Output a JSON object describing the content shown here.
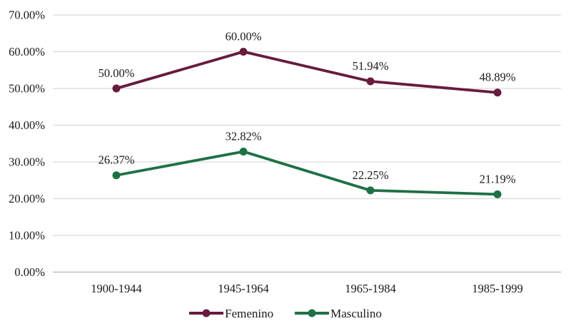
{
  "chart_data": {
    "type": "line",
    "title": "",
    "xlabel": "",
    "ylabel": "",
    "categories": [
      "1900-1944",
      "1945-1964",
      "1965-1984",
      "1985-1999"
    ],
    "series": [
      {
        "name": "Femenino",
        "color": "#671B3D",
        "values": [
          50.0,
          60.0,
          51.94,
          48.89
        ],
        "labels": [
          "50.00%",
          "60.00%",
          "51.94%",
          "48.89%"
        ]
      },
      {
        "name": "Masculino",
        "color": "#1E7145",
        "values": [
          26.37,
          32.82,
          22.25,
          21.19
        ],
        "labels": [
          "26.37%",
          "32.82%",
          "22.25%",
          "21.19%"
        ]
      }
    ],
    "y_axis": {
      "min": 0,
      "max": 70,
      "step": 10,
      "tick_labels": [
        "0.00%",
        "10.00%",
        "20.00%",
        "30.00%",
        "40.00%",
        "50.00%",
        "60.00%",
        "70.00%"
      ]
    },
    "grid": true,
    "gridline_color": "#D9D9D9",
    "axisline_color": "#BFBFBF",
    "legend_position": "bottom"
  }
}
